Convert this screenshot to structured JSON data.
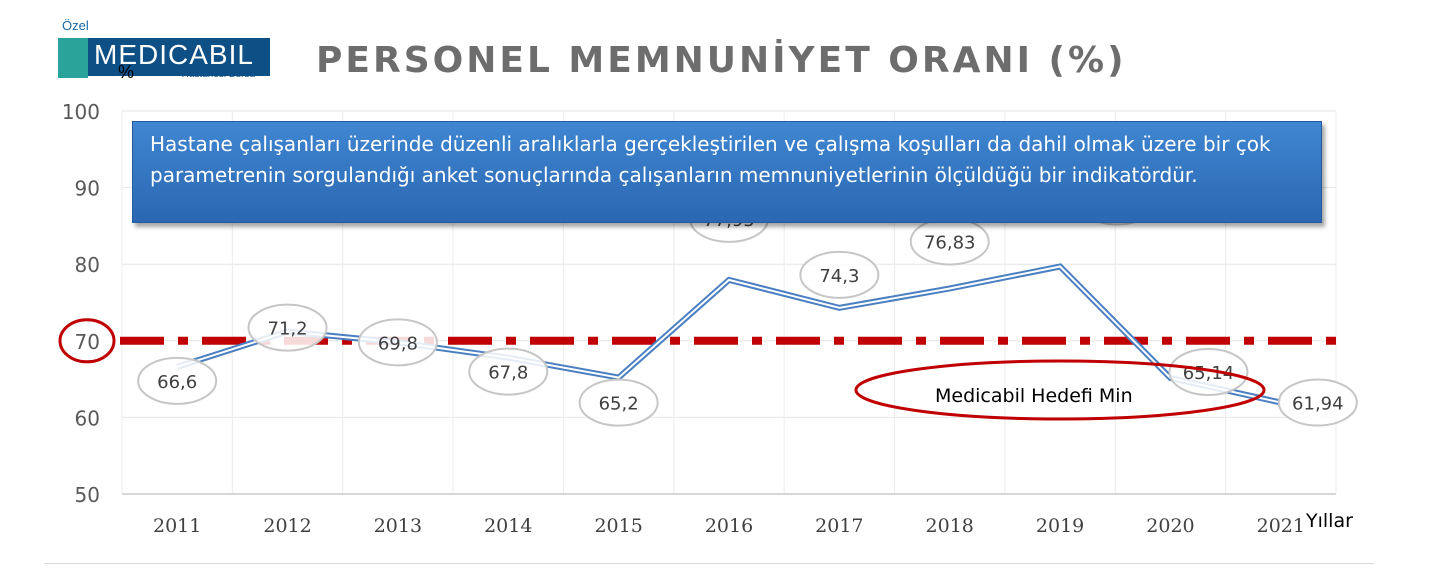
{
  "logo": {
    "small_text": "Özel",
    "brand": "MEDICABIL",
    "subtitle": "Hastanesi Bursa",
    "unit_mark": "%"
  },
  "header": {
    "title": "PERSONEL MEMNUNİYET ORANI (%)"
  },
  "info_box": {
    "text": "Hastane çalışanları üzerinde düzenli aralıklarla gerçekleştirilen ve çalışma koşulları da dahil olmak üzere bir çok parametrenin sorgulandığı anket sonuçlarında çalışanların memnuniyetlerinin ölçüldüğü bir indikatördür."
  },
  "chart_data": {
    "type": "line",
    "title": "PERSONEL MEMNUNİYET ORANI (%)",
    "xlabel": "Yıllar",
    "ylabel": "",
    "categories": [
      "2011",
      "2012",
      "2013",
      "2014",
      "2015",
      "2016",
      "2017",
      "2018",
      "2019",
      "2020",
      "2021"
    ],
    "series": [
      {
        "values": [
          66.6,
          71.2,
          69.8,
          67.8,
          65.2,
          77.95,
          74.3,
          76.83,
          79.7,
          65.14,
          61.94
        ],
        "data_labels": [
          "66,6",
          "71,2",
          "69,8",
          "67,8",
          "65,2",
          "77,95",
          "74,3",
          "76,83",
          "79,7",
          "65,14",
          "61,94"
        ],
        "color": "#4a7fc1"
      }
    ],
    "ylim": [
      50,
      100
    ],
    "yticks": [
      "50",
      "60",
      "70",
      "80",
      "90",
      "100"
    ],
    "grid": true,
    "target": {
      "value": 70,
      "label": "Medicabil Hedefi Min",
      "color": "#c00000"
    }
  }
}
